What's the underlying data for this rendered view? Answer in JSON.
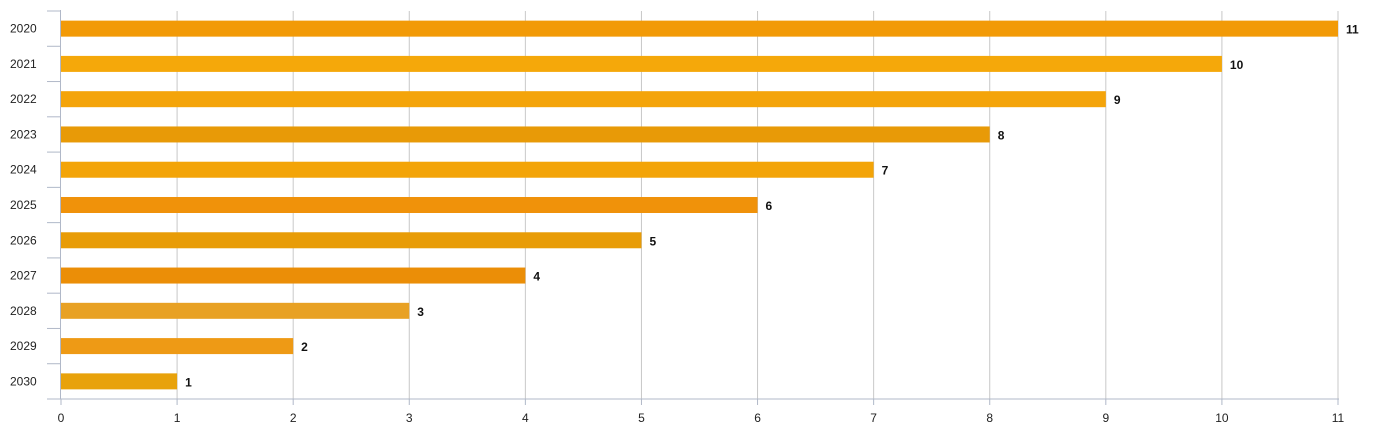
{
  "chart_data": {
    "type": "bar",
    "orientation": "horizontal",
    "title": "",
    "xlabel": "",
    "ylabel": "",
    "categories": [
      "2020",
      "2021",
      "2022",
      "2023",
      "2024",
      "2025",
      "2026",
      "2027",
      "2028",
      "2029",
      "2030"
    ],
    "values": [
      11,
      10,
      9,
      8,
      7,
      6,
      5,
      4,
      3,
      2,
      1
    ],
    "data_labels": [
      "11",
      "10",
      "9",
      "8",
      "7",
      "6",
      "5",
      "4",
      "3",
      "2",
      "1"
    ],
    "xlim": [
      0,
      11
    ],
    "x_ticks": [
      "0",
      "1",
      "2",
      "3",
      "4",
      "5",
      "6",
      "7",
      "8",
      "9",
      "10",
      "11"
    ],
    "grid": "vertical",
    "legend": "none",
    "bar_colors": [
      "#F29A07",
      "#F5A80A",
      "#F4A40A",
      "#E89A07",
      "#F3A408",
      "#F0920A",
      "#E89C07",
      "#EB8E07",
      "#E8A124",
      "#EE9A15",
      "#E8A20B"
    ],
    "grid_color": "#c8c8c8",
    "axis_color": "#b0b8c8"
  }
}
